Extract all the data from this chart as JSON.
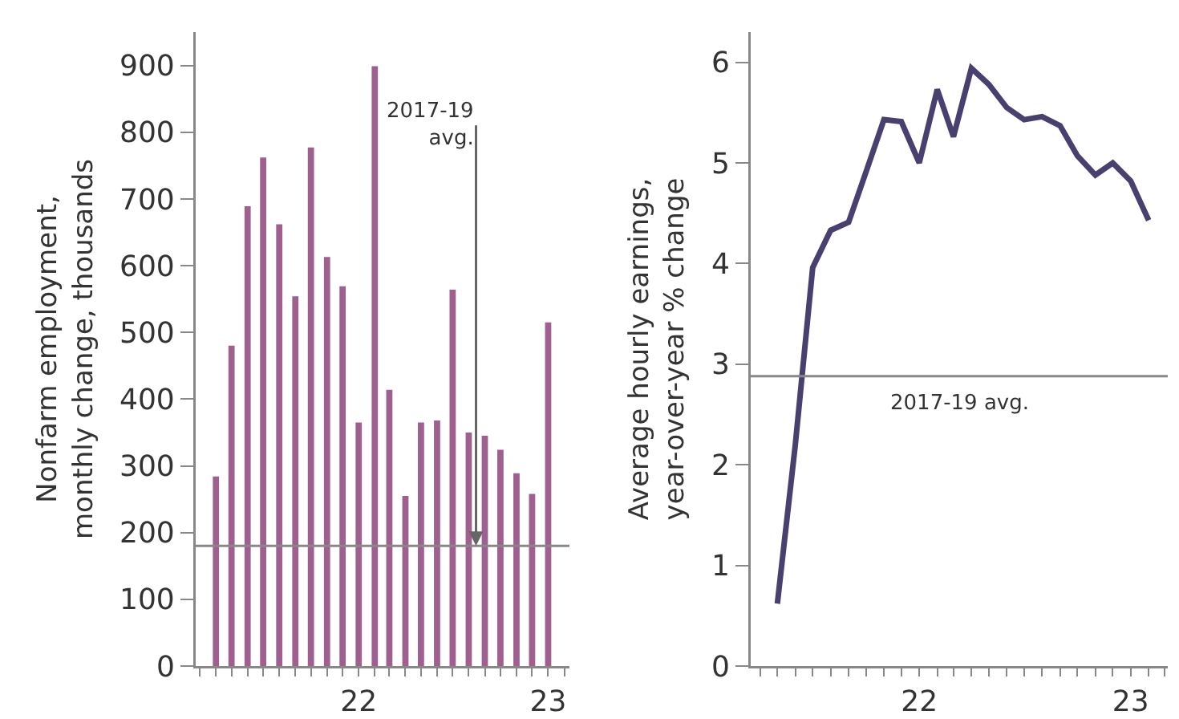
{
  "chart_data": [
    {
      "type": "bar",
      "ylabel": "Nonfarm employment,\nmonthly change, thousands",
      "x": [
        "2021-04",
        "2021-05",
        "2021-06",
        "2021-07",
        "2021-08",
        "2021-09",
        "2021-10",
        "2021-11",
        "2021-12",
        "2022-01",
        "2022-02",
        "2022-03",
        "2022-04",
        "2022-05",
        "2022-06",
        "2022-07",
        "2022-08",
        "2022-09",
        "2022-10",
        "2022-11",
        "2022-12",
        "2023-01"
      ],
      "values": [
        284,
        480,
        689,
        762,
        662,
        554,
        777,
        613,
        569,
        365,
        899,
        414,
        255,
        365,
        368,
        564,
        350,
        345,
        324,
        289,
        258,
        515
      ],
      "color": "#a0608f",
      "ylim": [
        0,
        950
      ],
      "yticks": [
        0,
        100,
        200,
        300,
        400,
        500,
        600,
        700,
        800,
        900
      ],
      "xlim": [
        "2021-02-21",
        "2023-02-11"
      ],
      "xticks": [
        {
          "value": "2021-03",
          "label": null
        },
        {
          "value": "2021-04",
          "label": null
        },
        {
          "value": "2021-05",
          "label": null
        },
        {
          "value": "2021-06",
          "label": null
        },
        {
          "value": "2021-07",
          "label": null
        },
        {
          "value": "2021-08",
          "label": null
        },
        {
          "value": "2021-09",
          "label": null
        },
        {
          "value": "2021-10",
          "label": null
        },
        {
          "value": "2021-11",
          "label": null
        },
        {
          "value": "2021-12",
          "label": null
        },
        {
          "value": "2022-01",
          "label": "22"
        },
        {
          "value": "2022-02",
          "label": null
        },
        {
          "value": "2022-03",
          "label": null
        },
        {
          "value": "2022-04",
          "label": null
        },
        {
          "value": "2022-05",
          "label": null
        },
        {
          "value": "2022-06",
          "label": null
        },
        {
          "value": "2022-07",
          "label": null
        },
        {
          "value": "2022-08",
          "label": null
        },
        {
          "value": "2022-09",
          "label": null
        },
        {
          "value": "2022-10",
          "label": null
        },
        {
          "value": "2022-11",
          "label": null
        },
        {
          "value": "2022-12",
          "label": null
        },
        {
          "value": "2023-01",
          "label": "23"
        },
        {
          "value": "2023-02",
          "label": null
        }
      ],
      "ref_lines": [
        {
          "axis": "y",
          "value": 180,
          "color": "#888888"
        }
      ],
      "annotations": [
        {
          "text": "2017-19\navg.",
          "x": "2022-08-15",
          "y": 180
        }
      ]
    },
    {
      "type": "line",
      "ylabel": "Average hourly earnings,\nyear-over-year % change",
      "x": [
        "2021-05",
        "2021-06",
        "2021-07",
        "2021-08",
        "2021-09",
        "2021-10",
        "2021-11",
        "2021-12",
        "2022-01",
        "2022-02",
        "2022-03",
        "2022-04",
        "2022-05",
        "2022-06",
        "2022-07",
        "2022-08",
        "2022-09",
        "2022-10",
        "2022-11",
        "2022-12",
        "2023-01",
        "2023-02"
      ],
      "values": [
        0.62,
        2.2,
        3.96,
        4.33,
        4.41,
        4.91,
        5.43,
        5.41,
        5.0,
        5.73,
        5.26,
        5.94,
        5.78,
        5.55,
        5.43,
        5.46,
        5.37,
        5.07,
        4.88,
        5.0,
        4.82,
        4.43
      ],
      "color": "#4a4070",
      "marker": "none",
      "line_style": "solid",
      "ylim": [
        0,
        6.3
      ],
      "yticks": [
        0,
        1,
        2,
        3,
        4,
        5,
        6
      ],
      "xlim": [
        "2021-03-16",
        "2023-03-06"
      ],
      "xticks": [
        {
          "value": "2021-04",
          "label": null
        },
        {
          "value": "2021-05",
          "label": null
        },
        {
          "value": "2021-06",
          "label": null
        },
        {
          "value": "2021-07",
          "label": null
        },
        {
          "value": "2021-08",
          "label": null
        },
        {
          "value": "2021-09",
          "label": null
        },
        {
          "value": "2021-10",
          "label": null
        },
        {
          "value": "2021-11",
          "label": null
        },
        {
          "value": "2021-12",
          "label": null
        },
        {
          "value": "2022-01",
          "label": "22"
        },
        {
          "value": "2022-02",
          "label": null
        },
        {
          "value": "2022-03",
          "label": null
        },
        {
          "value": "2022-04",
          "label": null
        },
        {
          "value": "2022-05",
          "label": null
        },
        {
          "value": "2022-06",
          "label": null
        },
        {
          "value": "2022-07",
          "label": null
        },
        {
          "value": "2022-08",
          "label": null
        },
        {
          "value": "2022-09",
          "label": null
        },
        {
          "value": "2022-10",
          "label": null
        },
        {
          "value": "2022-11",
          "label": null
        },
        {
          "value": "2022-12",
          "label": null
        },
        {
          "value": "2023-01",
          "label": "23"
        },
        {
          "value": "2023-02",
          "label": null
        },
        {
          "value": "2023-03",
          "label": null
        }
      ],
      "ref_lines": [
        {
          "axis": "y",
          "value": 2.88,
          "label": "2017-19 avg.",
          "color": "#888888"
        }
      ]
    }
  ]
}
